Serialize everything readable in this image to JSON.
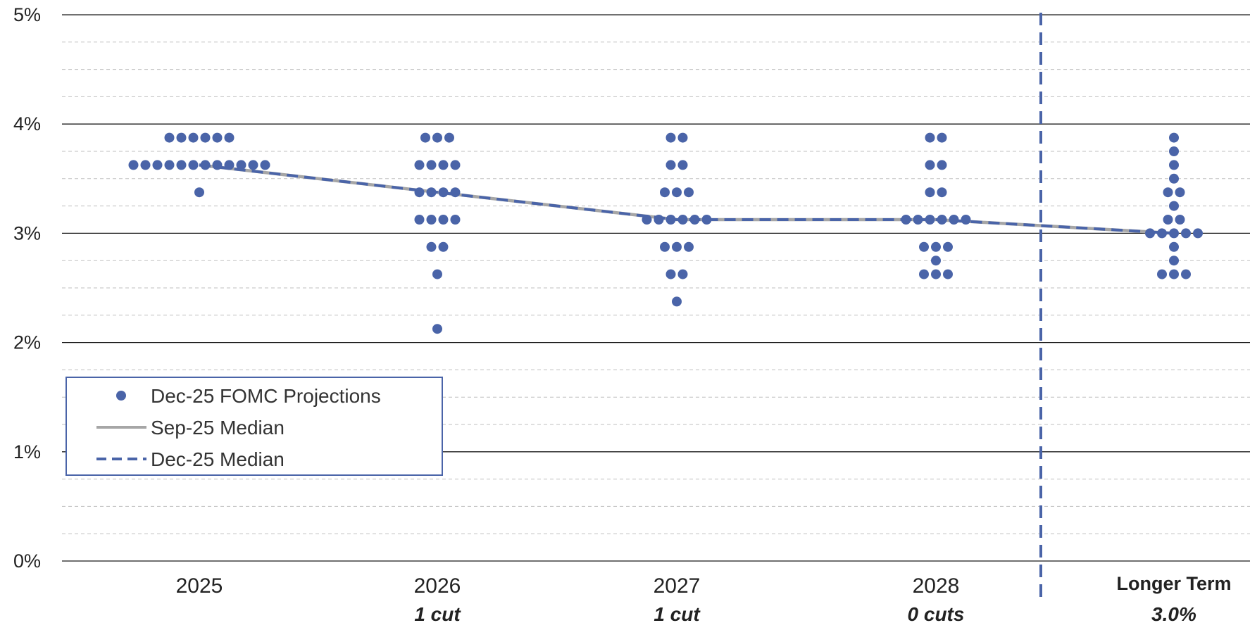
{
  "chart_data": {
    "type": "scatter",
    "y_tick_labels": [
      "0%",
      "1%",
      "2%",
      "3%",
      "4%",
      "5%"
    ],
    "ylim": [
      0,
      5
    ],
    "y_minor_step": 0.25,
    "categories": [
      "2025",
      "2026",
      "2027",
      "2028",
      "Longer Term"
    ],
    "category_subtitles": [
      "",
      "1 cut",
      "1 cut",
      "0 cuts",
      "3.0%"
    ],
    "category_separator_after": "2028",
    "series": [
      {
        "name": "Dec-25 FOMC Projections",
        "kind": "dots",
        "color": "#4A64A8",
        "points": [
          {
            "category": "2025",
            "values": [
              3.875,
              3.875,
              3.875,
              3.875,
              3.875,
              3.875,
              3.625,
              3.625,
              3.625,
              3.625,
              3.625,
              3.625,
              3.625,
              3.625,
              3.625,
              3.625,
              3.625,
              3.625,
              3.375
            ]
          },
          {
            "category": "2026",
            "values": [
              3.875,
              3.875,
              3.875,
              3.625,
              3.625,
              3.625,
              3.625,
              3.375,
              3.375,
              3.375,
              3.375,
              3.125,
              3.125,
              3.125,
              3.125,
              2.875,
              2.875,
              2.625,
              2.125
            ]
          },
          {
            "category": "2027",
            "values": [
              3.875,
              3.875,
              3.625,
              3.625,
              3.375,
              3.375,
              3.375,
              3.125,
              3.125,
              3.125,
              3.125,
              3.125,
              3.125,
              2.875,
              2.875,
              2.875,
              2.625,
              2.625,
              2.375
            ]
          },
          {
            "category": "2028",
            "values": [
              3.875,
              3.875,
              3.625,
              3.625,
              3.375,
              3.375,
              3.125,
              3.125,
              3.125,
              3.125,
              3.125,
              3.125,
              2.875,
              2.875,
              2.875,
              2.75,
              2.625,
              2.625,
              2.625
            ]
          },
          {
            "category": "Longer Term",
            "values": [
              3.875,
              3.75,
              3.625,
              3.5,
              3.375,
              3.375,
              3.25,
              3.125,
              3.125,
              3.0,
              3.0,
              3.0,
              3.0,
              3.0,
              2.875,
              2.75,
              2.625,
              2.625,
              2.625
            ]
          }
        ]
      },
      {
        "name": "Sep-25 Median",
        "kind": "line",
        "color": "#A6A6A6",
        "values": [
          3.625,
          3.375,
          3.125,
          3.125,
          3.0
        ]
      },
      {
        "name": "Dec-25 Median",
        "kind": "dashed-line",
        "color": "#4A64A8",
        "values": [
          3.625,
          3.375,
          3.125,
          3.125,
          3.0
        ]
      }
    ],
    "grid": true,
    "legend_position": "bottom-left"
  }
}
